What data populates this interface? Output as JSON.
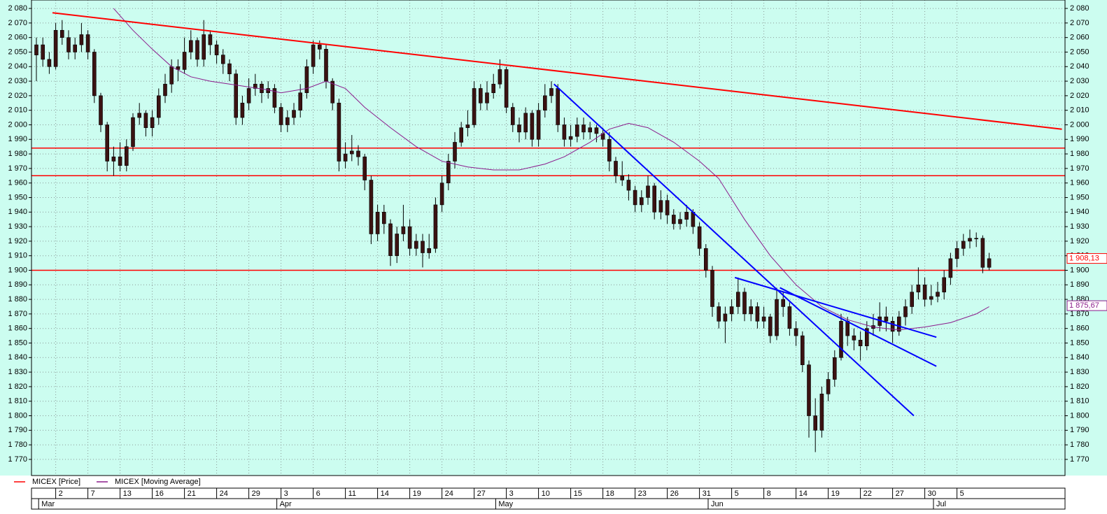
{
  "chart_data": {
    "type": "candlestick",
    "series": [
      {
        "name": "MICEX [Price]",
        "color": "#ff0000",
        "body_color": "#3b1212",
        "open": [
          2048,
          2055,
          2045,
          2040,
          2065,
          2060,
          2050,
          2055,
          2062,
          2050,
          2020,
          2000,
          1975,
          1978,
          1972,
          1985,
          2005,
          2008,
          1998,
          2005,
          2020,
          2028,
          2040,
          2038,
          2050,
          2058,
          2045,
          2062,
          2055,
          2048,
          2042,
          2035,
          2005,
          2015,
          2025,
          2028,
          2022,
          2025,
          2012,
          2000,
          2005,
          2010,
          2022,
          2040,
          2055,
          2052,
          2030,
          2015,
          1975,
          1980,
          1982,
          1978,
          1962,
          1925,
          1940,
          1932,
          1910,
          1925,
          1930,
          1915,
          1920,
          1912,
          1915,
          1945,
          1960,
          1975,
          1988,
          1998,
          2000,
          2025,
          2015,
          2022,
          2028,
          2038,
          2012,
          2000,
          1995,
          2008,
          1990,
          2010,
          2020,
          2025,
          2000,
          1990,
          1992,
          2000,
          1995,
          1998,
          1994,
          1990,
          1975,
          1965,
          1962,
          1955,
          1945,
          1950,
          1958,
          1940,
          1948,
          1938,
          1932,
          1935,
          1940,
          1930,
          1915,
          1900,
          1875,
          1865,
          1870,
          1875,
          1885,
          1870,
          1875,
          1865,
          1868,
          1855,
          1880,
          1875,
          1860,
          1855,
          1835,
          1800,
          1790,
          1815,
          1825,
          1840,
          1865,
          1855,
          1852,
          1848,
          1860,
          1862,
          1868,
          1865,
          1858,
          1868,
          1875,
          1885,
          1890,
          1880,
          1882,
          1885,
          1895,
          1908,
          1915,
          1920,
          1922,
          1922,
          1902
        ],
        "high": [
          2060,
          2060,
          2050,
          2070,
          2072,
          2065,
          2060,
          2070,
          2065,
          2052,
          2022,
          2002,
          1985,
          1988,
          1990,
          2008,
          2015,
          2010,
          2010,
          2025,
          2035,
          2045,
          2045,
          2060,
          2065,
          2060,
          2072,
          2065,
          2058,
          2052,
          2045,
          2038,
          2020,
          2032,
          2035,
          2030,
          2030,
          2028,
          2015,
          2010,
          2015,
          2028,
          2045,
          2058,
          2058,
          2055,
          2032,
          2018,
          1988,
          1993,
          1986,
          1980,
          1965,
          1945,
          1945,
          1935,
          1930,
          1945,
          1935,
          1925,
          1925,
          1925,
          1950,
          1965,
          1980,
          1995,
          2002,
          2010,
          2030,
          2028,
          2030,
          2035,
          2045,
          2040,
          2015,
          2005,
          2012,
          2010,
          2015,
          2028,
          2030,
          2028,
          2005,
          2000,
          2005,
          2005,
          2002,
          2000,
          1998,
          1995,
          1978,
          1975,
          1966,
          1958,
          1955,
          1965,
          1960,
          1955,
          1952,
          1942,
          1940,
          1945,
          1942,
          1933,
          1918,
          1903,
          1878,
          1875,
          1880,
          1895,
          1888,
          1880,
          1878,
          1875,
          1870,
          1888,
          1885,
          1878,
          1865,
          1858,
          1838,
          1812,
          1820,
          1830,
          1845,
          1870,
          1868,
          1860,
          1858,
          1865,
          1870,
          1878,
          1875,
          1868,
          1872,
          1880,
          1890,
          1902,
          1895,
          1890,
          1892,
          1900,
          1912,
          1920,
          1925,
          1928,
          1926,
          1924,
          1912
        ],
        "low": [
          2030,
          2040,
          2035,
          2038,
          2055,
          2045,
          2045,
          2050,
          2045,
          2015,
          1995,
          1968,
          1965,
          1968,
          1968,
          1982,
          2000,
          1992,
          1992,
          2000,
          2015,
          2022,
          2030,
          2035,
          2045,
          2040,
          2040,
          2048,
          2042,
          2035,
          2030,
          2000,
          2000,
          2010,
          2020,
          2015,
          2018,
          2008,
          1995,
          1995,
          2000,
          2005,
          2018,
          2035,
          2045,
          2025,
          2010,
          1968,
          1970,
          1975,
          1972,
          1955,
          1918,
          1920,
          1925,
          1903,
          1905,
          1920,
          1910,
          1910,
          1902,
          1908,
          1912,
          1940,
          1955,
          1970,
          1985,
          1992,
          1998,
          2010,
          2010,
          2018,
          2025,
          2008,
          1995,
          1988,
          1990,
          1985,
          1985,
          2005,
          2015,
          1995,
          1985,
          1985,
          1988,
          1990,
          1990,
          1988,
          1985,
          1968,
          1960,
          1958,
          1948,
          1940,
          1940,
          1945,
          1935,
          1935,
          1932,
          1928,
          1928,
          1930,
          1925,
          1910,
          1895,
          1868,
          1860,
          1850,
          1865,
          1870,
          1865,
          1865,
          1860,
          1860,
          1850,
          1852,
          1868,
          1855,
          1848,
          1830,
          1785,
          1775,
          1785,
          1810,
          1820,
          1838,
          1848,
          1845,
          1838,
          1845,
          1855,
          1858,
          1858,
          1850,
          1855,
          1862,
          1870,
          1880,
          1875,
          1876,
          1878,
          1880,
          1890,
          1902,
          1910,
          1915,
          1916,
          1898,
          1900
        ],
        "close": [
          2055,
          2045,
          2040,
          2065,
          2060,
          2050,
          2055,
          2062,
          2050,
          2020,
          2000,
          1975,
          1978,
          1972,
          1985,
          2005,
          2008,
          1998,
          2005,
          2020,
          2028,
          2040,
          2038,
          2050,
          2058,
          2045,
          2062,
          2055,
          2048,
          2042,
          2035,
          2005,
          2015,
          2025,
          2028,
          2022,
          2025,
          2012,
          2000,
          2005,
          2010,
          2022,
          2040,
          2055,
          2052,
          2030,
          2015,
          1975,
          1980,
          1982,
          1978,
          1962,
          1925,
          1940,
          1932,
          1910,
          1925,
          1930,
          1915,
          1920,
          1912,
          1915,
          1945,
          1960,
          1975,
          1988,
          1998,
          2000,
          2025,
          2015,
          2022,
          2028,
          2038,
          2012,
          2000,
          1995,
          2008,
          1990,
          2010,
          2020,
          2025,
          2000,
          1990,
          1992,
          2000,
          1995,
          1998,
          1994,
          1990,
          1975,
          1965,
          1962,
          1955,
          1945,
          1950,
          1958,
          1940,
          1948,
          1938,
          1932,
          1935,
          1940,
          1930,
          1915,
          1900,
          1875,
          1865,
          1870,
          1875,
          1885,
          1870,
          1875,
          1865,
          1868,
          1855,
          1880,
          1875,
          1860,
          1855,
          1835,
          1800,
          1790,
          1815,
          1825,
          1840,
          1865,
          1855,
          1852,
          1848,
          1860,
          1862,
          1868,
          1865,
          1858,
          1868,
          1875,
          1885,
          1890,
          1880,
          1882,
          1885,
          1895,
          1908,
          1915,
          1920,
          1922,
          1922,
          1902,
          1908
        ],
        "last": {
          "value": 1908.13,
          "label": "1 908,13"
        }
      },
      {
        "name": "MICEX [Moving Average]",
        "color": "#8b1a8b",
        "x": [
          12,
          15,
          18,
          21,
          24,
          27,
          30,
          33,
          36,
          38,
          42,
          45,
          48,
          51,
          55,
          59,
          63,
          67,
          71,
          75,
          79,
          82,
          86,
          89,
          92,
          95,
          99,
          103,
          106,
          110,
          114,
          118,
          122,
          126,
          130,
          134,
          138,
          142,
          146,
          148
        ],
        "values": [
          2080,
          2065,
          2052,
          2040,
          2033,
          2030,
          2028,
          2026,
          2024,
          2022,
          2025,
          2030,
          2025,
          2012,
          1998,
          1985,
          1975,
          1971,
          1969,
          1969,
          1973,
          1978,
          1988,
          1997,
          2001,
          1998,
          1988,
          1975,
          1963,
          1935,
          1910,
          1890,
          1875,
          1866,
          1861,
          1859,
          1861,
          1864,
          1870,
          1875
        ],
        "last": {
          "value": 1875.67,
          "label": "1 875,67"
        }
      }
    ],
    "categories": [
      null,
      null,
      null,
      "2",
      null,
      null,
      null,
      null,
      "7",
      null,
      null,
      null,
      null,
      "13",
      null,
      null,
      null,
      null,
      "16",
      null,
      null,
      null,
      null,
      "21",
      null,
      null,
      null,
      null,
      "24",
      null,
      null,
      null,
      null,
      "29",
      null,
      null,
      null,
      null,
      "3",
      null,
      null,
      null,
      null,
      "6",
      null,
      null,
      null,
      null,
      "11",
      null,
      null,
      null,
      null,
      "14",
      null,
      null,
      null,
      null,
      "19",
      null,
      null,
      null,
      null,
      "24",
      null,
      null,
      null,
      null,
      "27",
      null,
      null,
      null,
      null,
      "3",
      null,
      null,
      null,
      null,
      "10",
      null,
      null,
      null,
      null,
      "15",
      null,
      null,
      null,
      null,
      "18",
      null,
      null,
      null,
      null,
      "23",
      null,
      null,
      null,
      null,
      "26",
      null,
      null,
      null,
      null,
      "31",
      null,
      null,
      null,
      null,
      "5",
      null,
      null,
      null,
      null,
      "8",
      null,
      null,
      null,
      null,
      "14",
      null,
      null,
      null,
      null,
      "19",
      null,
      null,
      null,
      null,
      "22",
      null,
      null,
      null,
      null,
      "27",
      null,
      null,
      null,
      null,
      "30",
      null,
      null,
      null,
      null,
      "5",
      null,
      null,
      null,
      null,
      null
    ],
    "months": [
      null,
      "Mar",
      null,
      null,
      null,
      null,
      null,
      null,
      null,
      null,
      null,
      null,
      null,
      null,
      null,
      null,
      null,
      null,
      null,
      null,
      null,
      null,
      null,
      null,
      null,
      null,
      null,
      null,
      null,
      null,
      null,
      null,
      null,
      null,
      null,
      null,
      null,
      null,
      "Apr",
      null,
      null,
      null,
      null,
      null,
      null,
      null,
      null,
      null,
      null,
      null,
      null,
      null,
      null,
      null,
      null,
      null,
      null,
      null,
      null,
      null,
      null,
      null,
      null,
      null,
      null,
      null,
      null,
      null,
      null,
      null,
      null,
      null,
      "May",
      null,
      null,
      null,
      null,
      null,
      null,
      null,
      null,
      null,
      null,
      null,
      null,
      null,
      null,
      null,
      null,
      null,
      null,
      null,
      null,
      null,
      null,
      null,
      null,
      null,
      null,
      null,
      null,
      null,
      null,
      null,
      null,
      "Jun",
      null,
      null,
      null,
      null,
      null,
      null,
      null,
      null,
      null,
      null,
      null,
      null,
      null,
      null,
      null,
      null,
      null,
      null,
      null,
      null,
      null,
      null,
      null,
      null,
      null,
      null,
      null,
      null,
      null,
      null,
      null,
      null,
      null,
      null,
      "Jul",
      null,
      null,
      null,
      null,
      null,
      null,
      null,
      null
    ],
    "trendlines": [
      {
        "color": "#ff0000",
        "x": [
          2.5,
          159.3
        ],
        "values": [
          2077,
          1997
        ]
      },
      {
        "color": "#0000ff",
        "x": [
          80.4,
          136.3
        ],
        "values": [
          2028,
          1800
        ]
      },
      {
        "color": "#0000ff",
        "x": [
          108.5,
          139.8
        ],
        "values": [
          1895,
          1854
        ]
      },
      {
        "color": "#0000ff",
        "x": [
          115.5,
          139.8
        ],
        "values": [
          1888,
          1834
        ]
      }
    ],
    "hlines": {
      "color": "#ff0000",
      "values": [
        1984,
        1965,
        1900
      ]
    },
    "ylim": [
      1758.9,
      2085.8
    ],
    "yticks": [
      {
        "value": 2080,
        "label": "2 080"
      },
      {
        "value": 2070,
        "label": "2 070"
      },
      {
        "value": 2060,
        "label": "2 060"
      },
      {
        "value": 2050,
        "label": "2 050"
      },
      {
        "value": 2040,
        "label": "2 040"
      },
      {
        "value": 2030,
        "label": "2 030"
      },
      {
        "value": 2020,
        "label": "2 020"
      },
      {
        "value": 2010,
        "label": "2 010"
      },
      {
        "value": 2000,
        "label": "2 000"
      },
      {
        "value": 1990,
        "label": "1 990"
      },
      {
        "value": 1980,
        "label": "1 980"
      },
      {
        "value": 1970,
        "label": "1 970"
      },
      {
        "value": 1960,
        "label": "1 960"
      },
      {
        "value": 1950,
        "label": "1 950"
      },
      {
        "value": 1940,
        "label": "1 940"
      },
      {
        "value": 1930,
        "label": "1 930"
      },
      {
        "value": 1920,
        "label": "1 920"
      },
      {
        "value": 1910,
        "label": "1 910"
      },
      {
        "value": 1900,
        "label": "1 900"
      },
      {
        "value": 1890,
        "label": "1 890"
      },
      {
        "value": 1880,
        "label": "1 880"
      },
      {
        "value": 1870,
        "label": "1 870"
      },
      {
        "value": 1860,
        "label": "1 860"
      },
      {
        "value": 1850,
        "label": "1 850"
      },
      {
        "value": 1840,
        "label": "1 840"
      },
      {
        "value": 1830,
        "label": "1 830"
      },
      {
        "value": 1820,
        "label": "1 820"
      },
      {
        "value": 1810,
        "label": "1 810"
      },
      {
        "value": 1800,
        "label": "1 800"
      },
      {
        "value": 1790,
        "label": "1 790"
      },
      {
        "value": 1780,
        "label": "1 780"
      },
      {
        "value": 1770,
        "label": "1 770"
      }
    ],
    "grid": true,
    "background": "#ccfdf0"
  }
}
